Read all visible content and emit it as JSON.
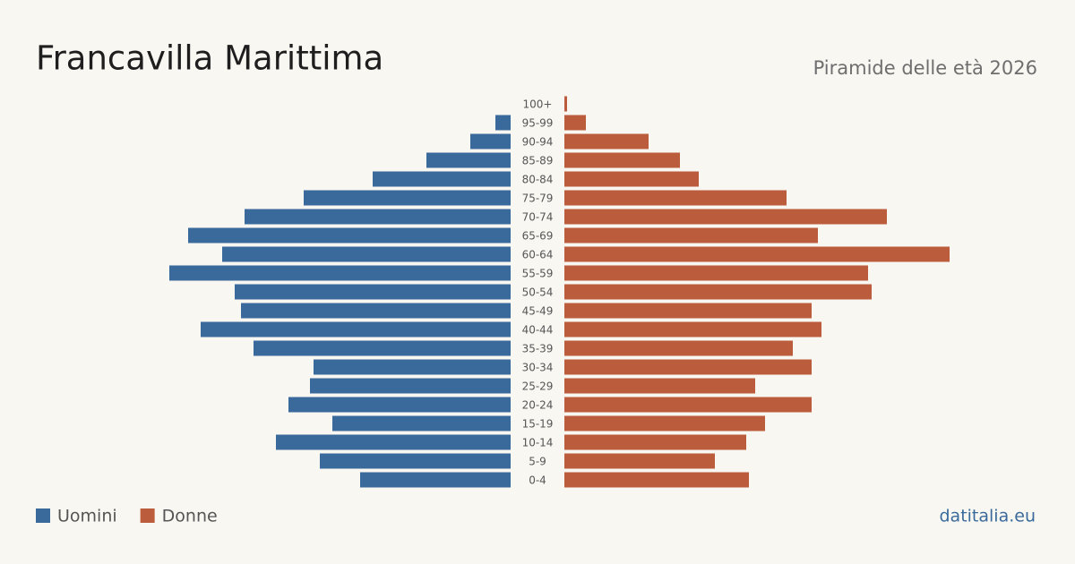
{
  "chart_data": {
    "type": "pyramid",
    "title": "Francavilla Marittima",
    "subtitle": "Piramide delle età 2026",
    "source": "datitalia.eu",
    "categories": [
      "100+",
      "95-99",
      "90-94",
      "85-89",
      "80-84",
      "75-79",
      "70-74",
      "65-69",
      "60-64",
      "55-59",
      "50-54",
      "45-49",
      "40-44",
      "35-39",
      "30-34",
      "25-29",
      "20-24",
      "15-19",
      "10-14",
      "5-9",
      "0-4"
    ],
    "series": [
      {
        "name": "Uomini",
        "color": "#3a6a9b",
        "values": [
          0,
          17,
          45,
          94,
          154,
          231,
          297,
          360,
          322,
          381,
          308,
          301,
          346,
          287,
          220,
          224,
          248,
          199,
          262,
          213,
          168
        ]
      },
      {
        "name": "Donne",
        "color": "#bb5c3c",
        "values": [
          3,
          24,
          94,
          129,
          150,
          248,
          360,
          283,
          430,
          339,
          343,
          276,
          287,
          255,
          276,
          213,
          276,
          224,
          203,
          168,
          206
        ]
      }
    ],
    "xlim": [
      0,
      430
    ]
  }
}
